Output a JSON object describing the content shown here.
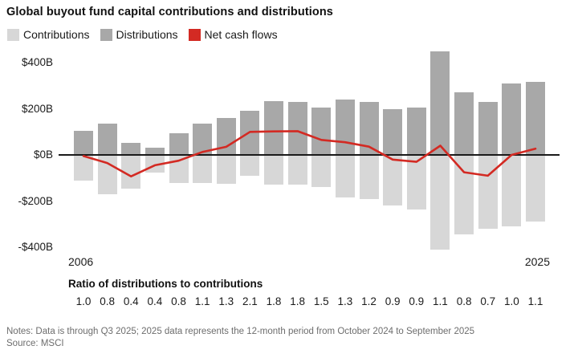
{
  "header": {
    "title": "Global buyout fund capital contributions and distributions"
  },
  "legend": [
    {
      "key": "contributions",
      "label": "Contributions"
    },
    {
      "key": "distributions",
      "label": "Distributions"
    },
    {
      "key": "net",
      "label": "Net cash flows"
    }
  ],
  "colors": {
    "contributions": "#d7d7d7",
    "distributions": "#a8a8a8",
    "net": "#d32a23",
    "axis_line": "#1a1a1a",
    "notes_text": "#6d6d6d"
  },
  "chart_data": {
    "type": "bar",
    "subtype": "diverging-bar-with-line",
    "title": "Global buyout fund capital contributions and distributions",
    "units": "billions USD",
    "grid": false,
    "legend_position": "top-left",
    "ylim": [
      -470,
      470
    ],
    "x": [
      2006,
      2007,
      2008,
      2009,
      2010,
      2011,
      2012,
      2013,
      2014,
      2015,
      2016,
      2017,
      2018,
      2019,
      2020,
      2021,
      2022,
      2023,
      2024,
      2025
    ],
    "series": [
      {
        "name": "Distributions",
        "type": "bar",
        "values": [
          105,
          135,
          52,
          30,
          95,
          135,
          160,
          190,
          232,
          230,
          205,
          240,
          228,
          200,
          205,
          450,
          270,
          230,
          310,
          315
        ]
      },
      {
        "name": "Contributions",
        "type": "bar",
        "values": [
          -110,
          -170,
          -145,
          -75,
          -120,
          -122,
          -125,
          -90,
          -130,
          -127,
          -140,
          -185,
          -192,
          -220,
          -235,
          -410,
          -345,
          -320,
          -310,
          -288
        ]
      },
      {
        "name": "Net cash flows",
        "type": "line",
        "values": [
          -5,
          -35,
          -93,
          -45,
          -25,
          13,
          35,
          100,
          102,
          103,
          65,
          55,
          36,
          -20,
          -30,
          40,
          -75,
          -90,
          0,
          27
        ]
      }
    ],
    "y_axis": {
      "ticks": [
        {
          "value": 400,
          "label": "$400B"
        },
        {
          "value": 200,
          "label": "$200B"
        },
        {
          "value": 0,
          "label": "$0B"
        },
        {
          "value": -200,
          "label": "-$200B"
        },
        {
          "value": -400,
          "label": "-$400B"
        }
      ]
    },
    "x_axis_labels": {
      "start": "2006",
      "end": "2025"
    }
  },
  "ratio_section": {
    "heading": "Ratio of distributions to contributions",
    "values": [
      "1.0",
      "0.8",
      "0.4",
      "0.4",
      "0.8",
      "1.1",
      "1.3",
      "2.1",
      "1.8",
      "1.8",
      "1.5",
      "1.3",
      "1.2",
      "0.9",
      "0.9",
      "1.1",
      "0.8",
      "0.7",
      "1.0",
      "1.1"
    ]
  },
  "notes": {
    "line1": "Notes: Data is through Q3 2025; 2025 data represents the 12-month period from October 2024 to September 2025",
    "line2": "Source: MSCI"
  }
}
